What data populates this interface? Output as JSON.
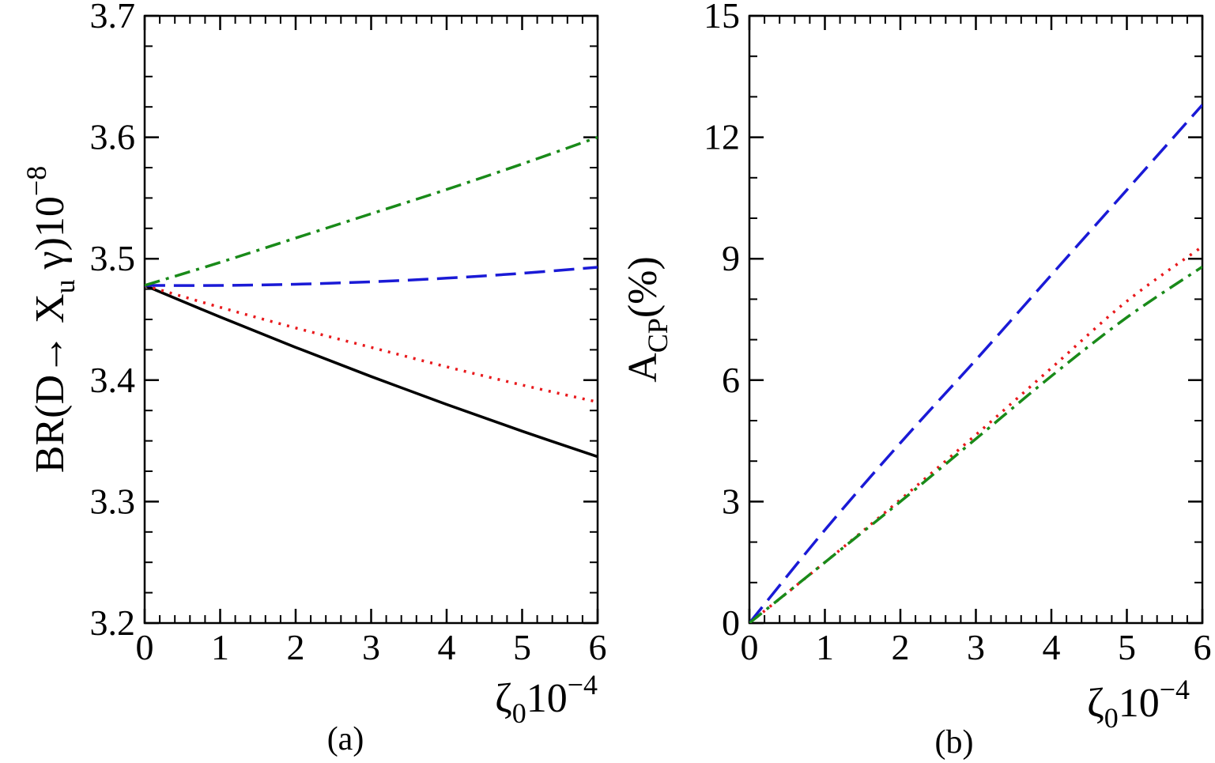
{
  "chart_data": [
    {
      "type": "line",
      "panel_label": "(a)",
      "xlabel": {
        "base": "ζ",
        "sub": "0",
        "mult": "10",
        "sup": "−4"
      },
      "ylabel": {
        "pre": "BR(D→ X",
        "sub": "u",
        "post": " γ)10",
        "sup": "−8"
      },
      "xlim": [
        0,
        6
      ],
      "ylim": [
        3.2,
        3.7
      ],
      "xticks": [
        "0",
        "1",
        "2",
        "3",
        "4",
        "5",
        "6"
      ],
      "yticks": [
        "3.2",
        "3.3",
        "3.4",
        "3.5",
        "3.6",
        "3.7"
      ],
      "x": [
        0,
        1,
        2,
        3,
        4,
        5,
        6
      ],
      "series": [
        {
          "values": [
            3.478,
            3.452,
            3.427,
            3.403,
            3.38,
            3.358,
            3.337
          ],
          "color": "#000000",
          "dash": "solid"
        },
        {
          "values": [
            3.478,
            3.46,
            3.443,
            3.427,
            3.411,
            3.396,
            3.382
          ],
          "color": "#e8191c",
          "dash": "dotted"
        },
        {
          "values": [
            3.478,
            3.478,
            3.479,
            3.481,
            3.484,
            3.488,
            3.493
          ],
          "color": "#1a1ad6",
          "dash": "dashed"
        },
        {
          "values": [
            3.478,
            3.497,
            3.517,
            3.537,
            3.557,
            3.578,
            3.6
          ],
          "color": "#198a19",
          "dash": "dashdot"
        }
      ],
      "grid": false
    },
    {
      "type": "line",
      "panel_label": "(b)",
      "xlabel": {
        "base": "ζ",
        "sub": "0",
        "mult": "10",
        "sup": "−4"
      },
      "ylabel": {
        "pre": "A",
        "sub": "CP",
        "post": "(%)"
      },
      "xlim": [
        0,
        6
      ],
      "ylim": [
        0,
        15
      ],
      "xticks": [
        "0",
        "1",
        "2",
        "3",
        "4",
        "5",
        "6"
      ],
      "yticks": [
        "0",
        "3",
        "6",
        "9",
        "12",
        "15"
      ],
      "x": [
        0,
        1,
        2,
        3,
        4,
        5,
        6
      ],
      "series": [
        {
          "values": [
            0,
            1.5,
            3.05,
            4.65,
            6.3,
            7.95,
            9.3
          ],
          "color": "#e8191c",
          "dash": "dotted"
        },
        {
          "values": [
            0,
            2.3,
            4.45,
            6.5,
            8.6,
            10.7,
            12.8
          ],
          "color": "#1a1ad6",
          "dash": "dashed"
        },
        {
          "values": [
            0,
            1.5,
            3.0,
            4.55,
            6.1,
            7.55,
            8.8
          ],
          "color": "#198a19",
          "dash": "dashdot"
        }
      ],
      "grid": false
    }
  ]
}
